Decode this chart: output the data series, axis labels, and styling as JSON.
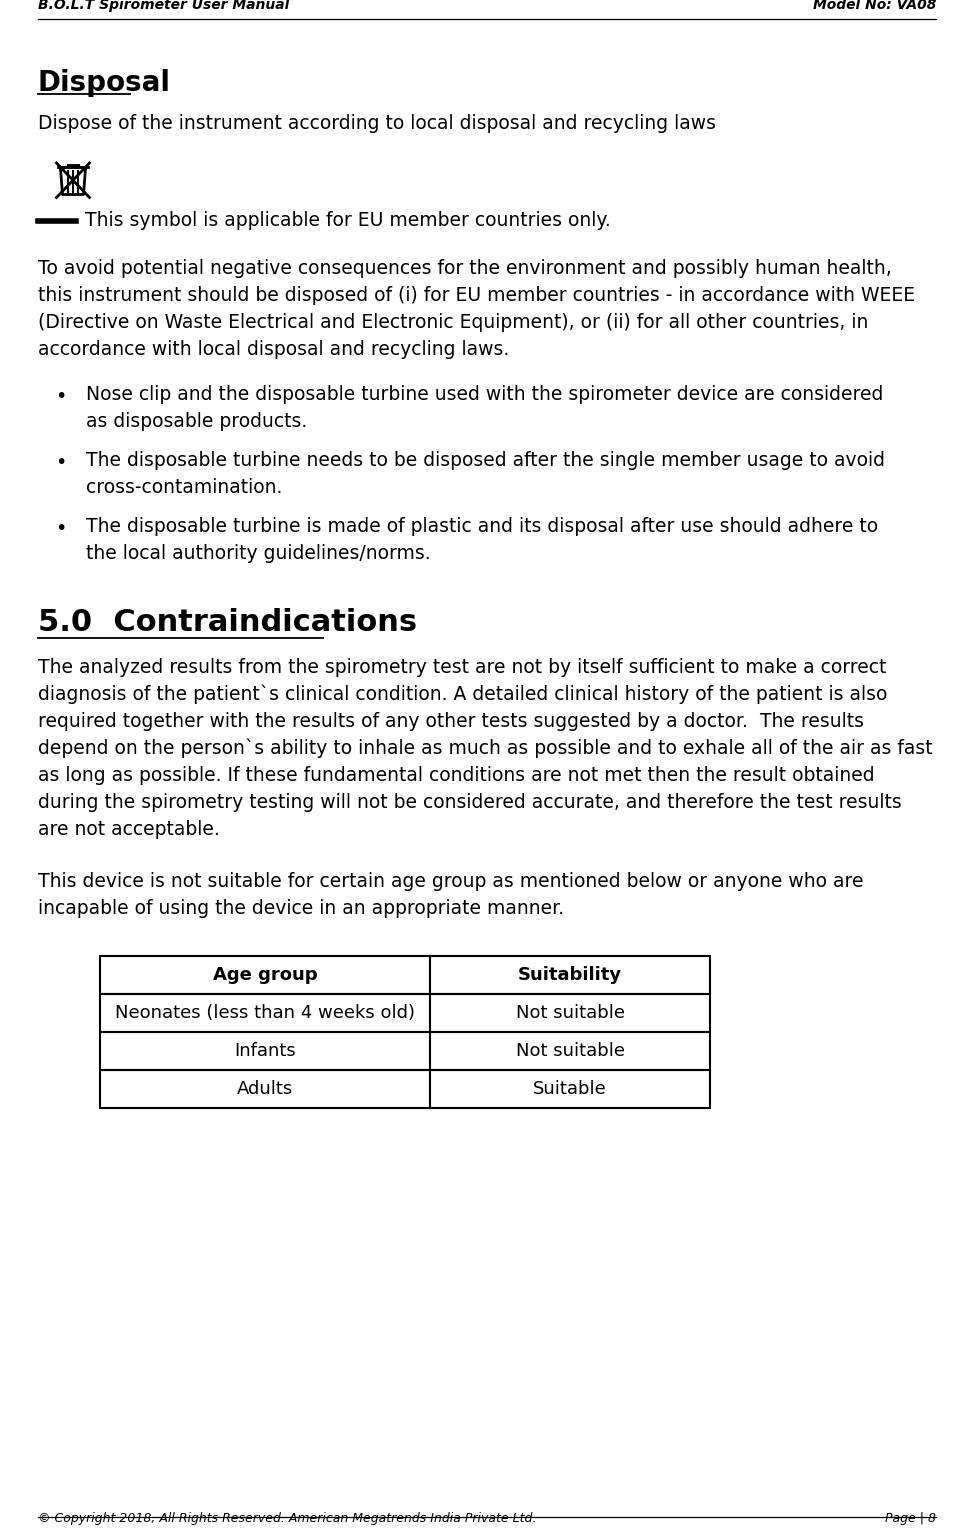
{
  "header_left": "B.O.L.T Spirometer User Manual",
  "header_right": "Model No: VA08",
  "footer_left": "© Copyright 2018, All Rights Reserved. American Megatrends India Private Ltd.",
  "footer_right": "Page | 8",
  "section1_title": "Disposal",
  "section1_subtitle": "Dispose of the instrument according to local disposal and recycling laws",
  "symbol_note": "This symbol is applicable for EU member countries only.",
  "bullets": [
    [
      "Nose clip and the disposable turbine used with the spirometer device are considered",
      "as disposable products."
    ],
    [
      "The disposable turbine needs to be disposed after the single member usage to avoid",
      "cross-contamination."
    ],
    [
      "The disposable turbine is made of plastic and its disposal after use should adhere to",
      "the local authority guidelines/norms."
    ]
  ],
  "para1_lines": [
    "To avoid potential negative consequences for the environment and possibly human health,",
    "this instrument should be disposed of (i) for EU member countries - in accordance with WEEE",
    "(Directive on Waste Electrical and Electronic Equipment), or (ii) for all other countries, in",
    "accordance with local disposal and recycling laws."
  ],
  "section2_title": "5.0  Contraindications",
  "section2_para1_lines": [
    "The analyzed results from the spirometry test are not by itself sufficient to make a correct",
    "diagnosis of the patient`s clinical condition. A detailed clinical history of the patient is also",
    "required together with the results of any other tests suggested by a doctor.  The results",
    "depend on the person`s ability to inhale as much as possible and to exhale all of the air as fast",
    "as long as possible. If these fundamental conditions are not met then the result obtained",
    "during the spirometry testing will not be considered accurate, and therefore the test results",
    "are not acceptable."
  ],
  "section2_para2_lines": [
    "This device is not suitable for certain age group as mentioned below or anyone who are",
    "incapable of using the device in an appropriate manner."
  ],
  "table_headers": [
    "Age group",
    "Suitability"
  ],
  "table_rows": [
    [
      "Neonates (less than 4 weeks old)",
      "Not suitable"
    ],
    [
      "Infants",
      "Not suitable"
    ],
    [
      "Adults",
      "Suitable"
    ]
  ],
  "bg_color": "#ffffff",
  "text_color": "#000000"
}
